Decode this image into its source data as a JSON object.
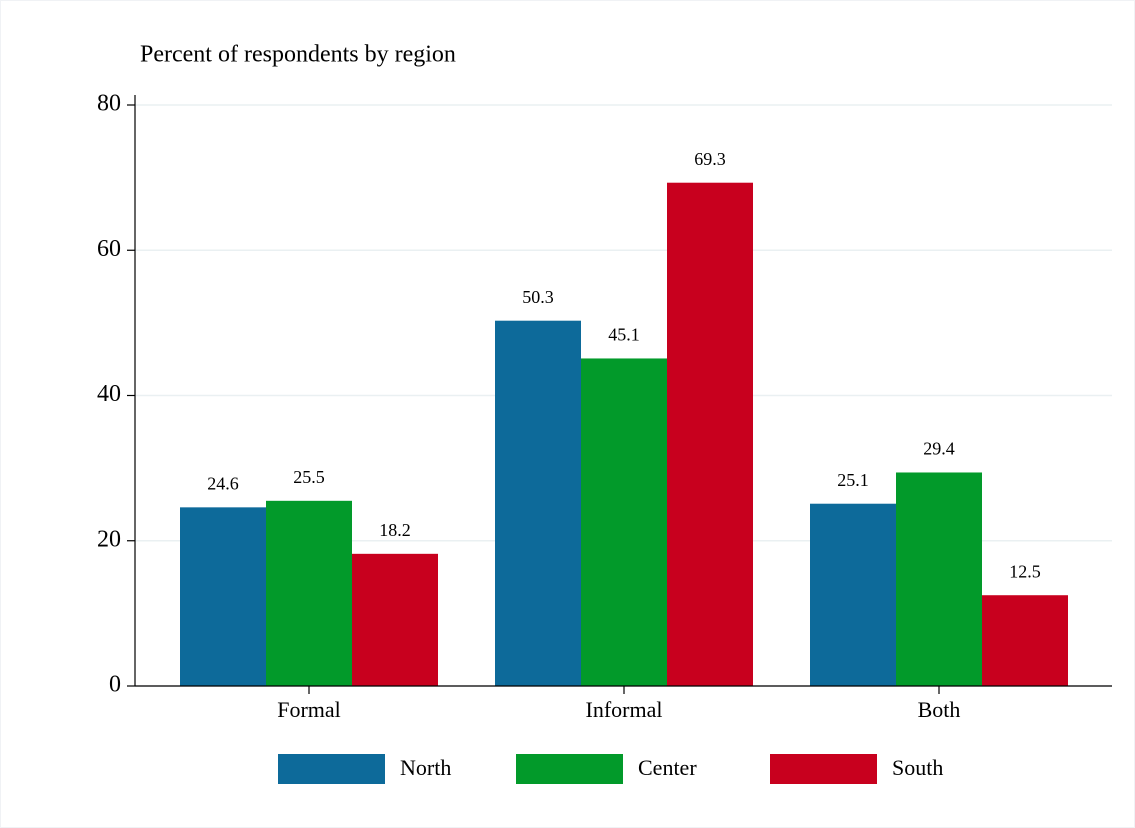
{
  "chart_data": {
    "type": "bar",
    "title": "Percent of respondents by region",
    "categories": [
      "Formal",
      "Informal",
      "Both"
    ],
    "series": [
      {
        "name": "North",
        "color": "#0d6a9a",
        "values": [
          24.6,
          50.3,
          25.1
        ]
      },
      {
        "name": "Center",
        "color": "#029a2a",
        "values": [
          25.5,
          45.1,
          29.4
        ]
      },
      {
        "name": "South",
        "color": "#c8001e",
        "values": [
          18.2,
          69.3,
          12.5
        ]
      }
    ],
    "ylim": [
      0,
      80
    ],
    "yticks": [
      0,
      20,
      40,
      60,
      80
    ],
    "grid": true,
    "legend": "bottom"
  }
}
